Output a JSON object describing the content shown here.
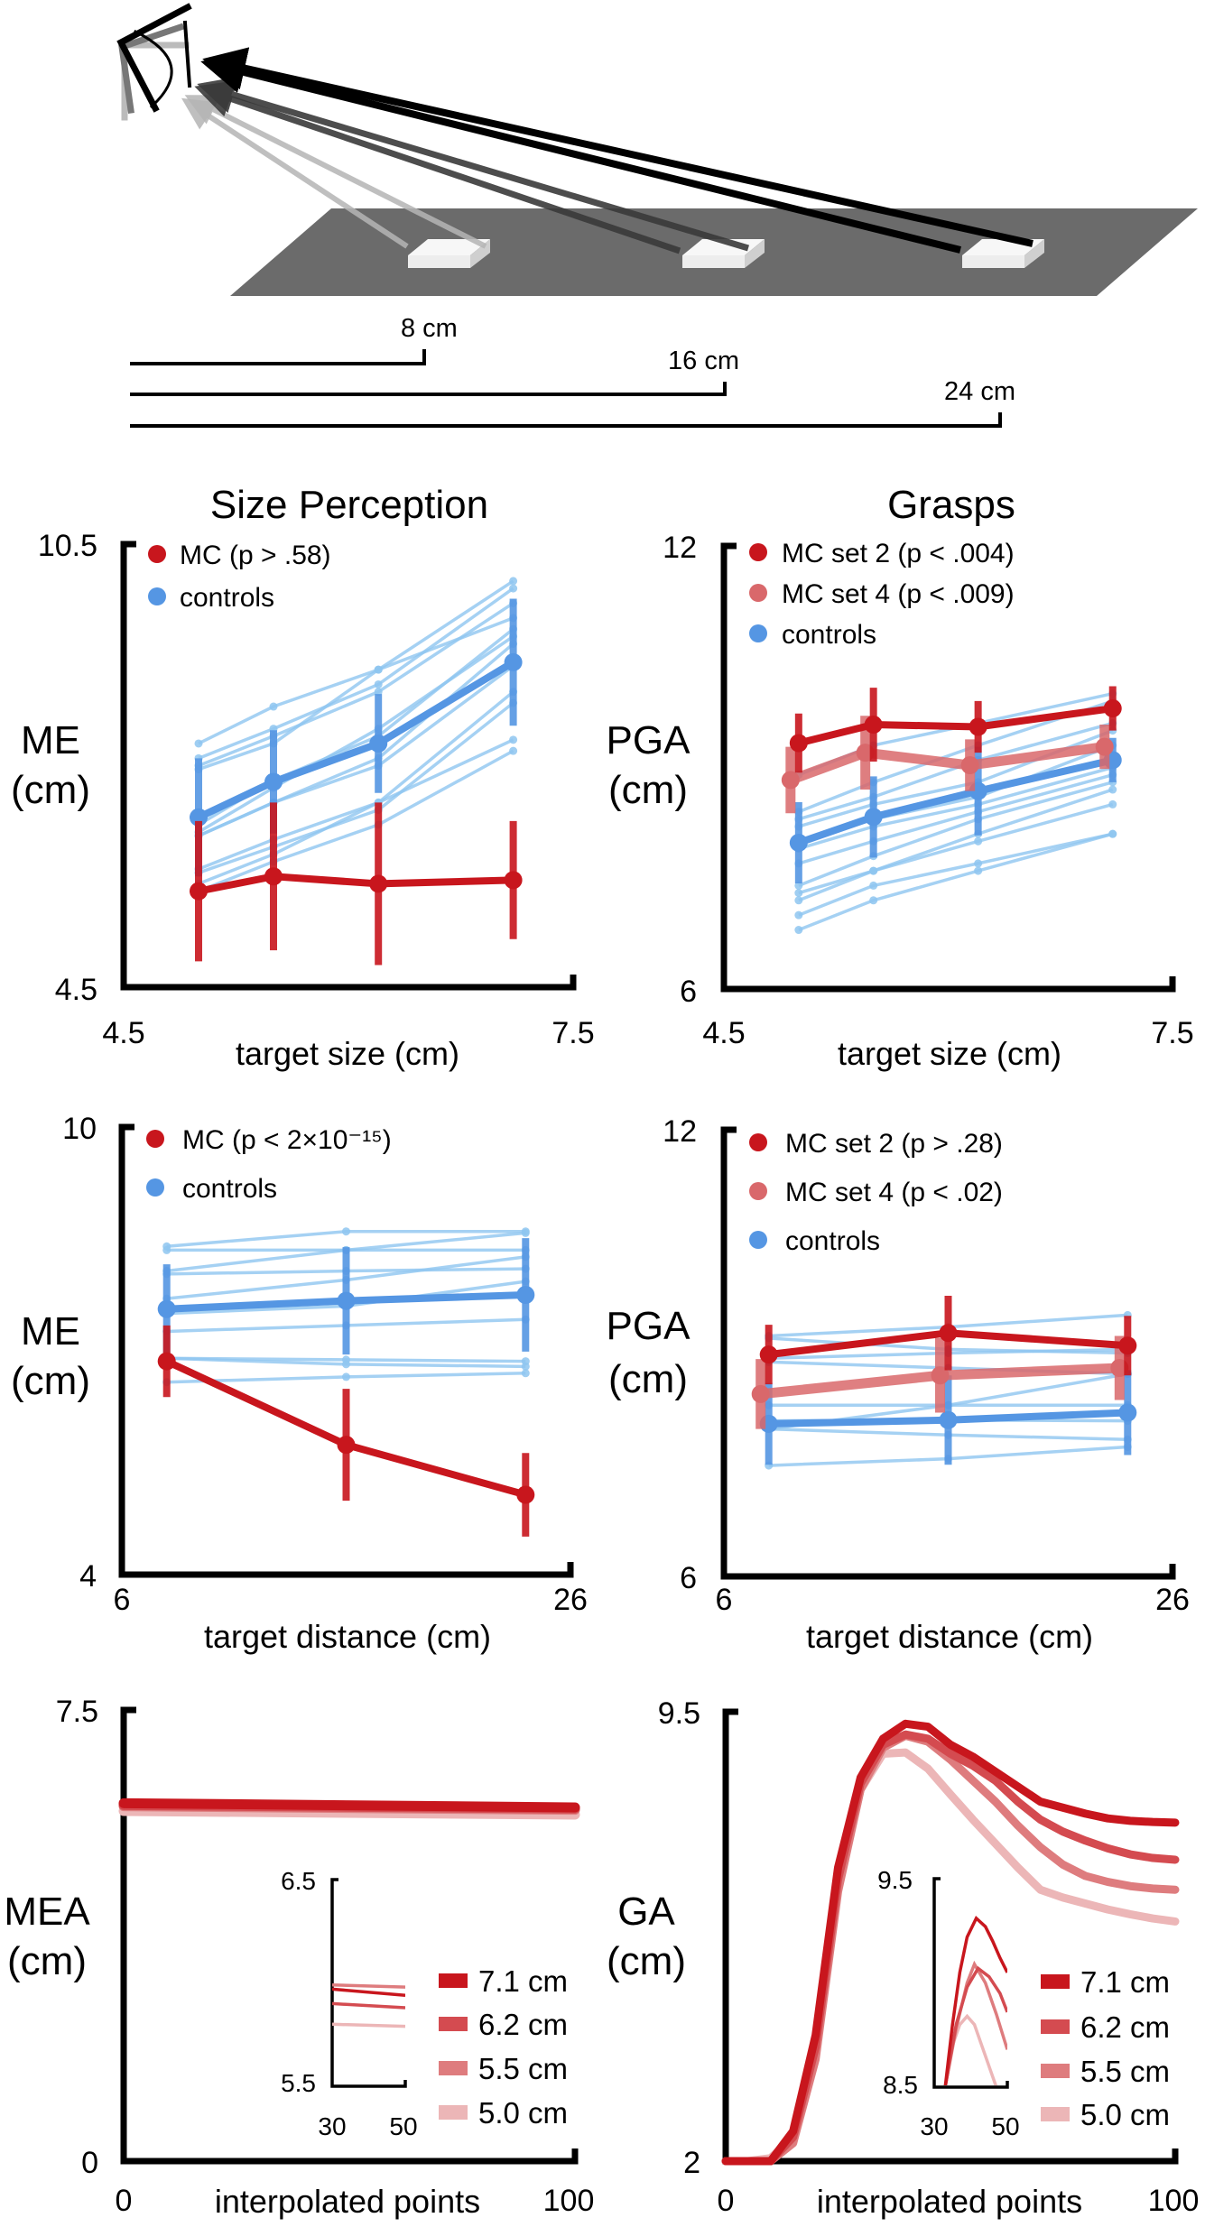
{
  "diagram": {
    "distance_labels": [
      "8 cm",
      "16 cm",
      "24 cm"
    ],
    "colors": {
      "table": "#6b6b6b",
      "block": "#f2f2f2",
      "arrow_far": "#000000",
      "arrow_mid": "#3a3a3a",
      "arrow_near": "#b5b5b5"
    }
  },
  "chart_data": [
    {
      "type": "line",
      "title": "Size Perception",
      "xlabel": "target size (cm)",
      "ylabel": [
        "ME",
        "(cm)"
      ],
      "xlim": [
        4.5,
        7.5
      ],
      "ylim": [
        4.5,
        10.5
      ],
      "xticks": [
        "4.5",
        "7.5"
      ],
      "yticks": [
        "10.5",
        "4.5"
      ],
      "x": [
        5.0,
        5.5,
        6.2,
        7.1
      ],
      "legend": "top-left",
      "series": [
        {
          "name": "MC (p > .58)",
          "color": "#c8161d",
          "mean": [
            5.8,
            6.0,
            5.9,
            5.95
          ],
          "error": [
            0.95,
            1.0,
            1.1,
            0.8
          ]
        },
        {
          "name": "controls",
          "color": "#5596e3",
          "individual_color": "#8ec5f0",
          "mean": [
            6.8,
            7.28,
            7.8,
            8.9
          ],
          "error": [
            0.8,
            0.7,
            0.67,
            0.86
          ],
          "individuals": [
            [
              7.8,
              8.3,
              8.8,
              10.0
            ],
            [
              7.6,
              8.0,
              8.6,
              9.9
            ],
            [
              7.5,
              7.9,
              8.5,
              9.7
            ],
            [
              7.45,
              7.8,
              8.8,
              9.5
            ],
            [
              6.7,
              7.3,
              7.9,
              9.35
            ],
            [
              6.6,
              7.2,
              8.0,
              9.25
            ],
            [
              6.55,
              7.0,
              7.6,
              9.15
            ],
            [
              6.55,
              7.0,
              7.5,
              8.85
            ],
            [
              6.1,
              6.5,
              7.0,
              8.5
            ],
            [
              6.05,
              6.4,
              6.9,
              8.35
            ],
            [
              5.9,
              6.3,
              7.0,
              7.85
            ],
            [
              5.8,
              6.2,
              6.7,
              7.7
            ]
          ]
        }
      ]
    },
    {
      "type": "line",
      "title": "Grasps",
      "xlabel": "target size (cm)",
      "ylabel": [
        "PGA",
        "(cm)"
      ],
      "xlim": [
        4.5,
        7.5
      ],
      "ylim": [
        6,
        12
      ],
      "xticks": [
        "4.5",
        "7.5"
      ],
      "yticks": [
        "12",
        "6"
      ],
      "x": [
        5.0,
        5.5,
        6.2,
        7.1
      ],
      "legend": "top-left",
      "series": [
        {
          "name": "MC set 2 (p < .004)",
          "color": "#c8161d",
          "mean": [
            9.33,
            9.58,
            9.55,
            9.8
          ],
          "error": [
            0.4,
            0.5,
            0.35,
            0.3
          ]
        },
        {
          "name": "MC set 4 (p < .009)",
          "color": "#d9686b",
          "mean": [
            8.83,
            9.2,
            9.03,
            9.28
          ],
          "error": [
            0.45,
            0.5,
            0.35,
            0.3
          ]
        },
        {
          "name": "controls",
          "color": "#5596e3",
          "individual_color": "#8ec5f0",
          "mean": [
            7.98,
            8.33,
            8.68,
            9.1
          ],
          "error": [
            0.55,
            0.55,
            0.6,
            0.3
          ],
          "individuals": [
            [
              8.9,
              9.3,
              9.6,
              10.0
            ],
            [
              8.4,
              8.8,
              9.3,
              9.9
            ],
            [
              8.3,
              8.6,
              9.1,
              9.6
            ],
            [
              8.2,
              8.5,
              8.8,
              9.5
            ],
            [
              8.0,
              8.3,
              8.6,
              9.3
            ],
            [
              7.9,
              8.2,
              8.5,
              9.0
            ],
            [
              7.7,
              8.0,
              8.4,
              8.9
            ],
            [
              7.4,
              7.8,
              8.3,
              8.8
            ],
            [
              7.3,
              7.6,
              8.1,
              8.7
            ],
            [
              7.2,
              7.6,
              8.0,
              8.5
            ],
            [
              7.0,
              7.4,
              7.7,
              8.1
            ],
            [
              6.8,
              7.2,
              7.6,
              8.1
            ]
          ]
        }
      ]
    },
    {
      "type": "line",
      "xlabel": "target distance (cm)",
      "ylabel": [
        "ME",
        "(cm)"
      ],
      "xlim": [
        6,
        26
      ],
      "ylim": [
        4,
        10
      ],
      "xticks": [
        "6",
        "26"
      ],
      "yticks": [
        "10",
        "4"
      ],
      "x": [
        8,
        16,
        24
      ],
      "legend": "top-left",
      "series": [
        {
          "name": "MC (p < 2×10⁻¹⁵)",
          "color": "#c8161d",
          "mean": [
            6.86,
            5.74,
            5.07
          ],
          "error": [
            0.48,
            0.75,
            0.56
          ]
        },
        {
          "name": "controls",
          "color": "#5596e3",
          "individual_color": "#8ec5f0",
          "mean": [
            7.56,
            7.67,
            7.75
          ],
          "error": [
            0.6,
            0.72,
            0.76
          ],
          "individuals": [
            [
              8.4,
              8.6,
              8.6
            ],
            [
              8.35,
              8.35,
              8.35
            ],
            [
              8.07,
              8.35,
              8.58
            ],
            [
              8.03,
              8.07,
              8.1
            ],
            [
              7.7,
              7.95,
              8.26
            ],
            [
              7.5,
              7.6,
              7.93
            ],
            [
              7.26,
              7.34,
              7.42
            ],
            [
              6.9,
              6.88,
              6.86
            ],
            [
              6.9,
              6.82,
              6.79
            ],
            [
              6.58,
              6.65,
              6.7
            ]
          ]
        }
      ]
    },
    {
      "type": "line",
      "xlabel": "target distance (cm)",
      "ylabel": [
        "PGA",
        "(cm)"
      ],
      "xlim": [
        6,
        26
      ],
      "ylim": [
        6,
        12
      ],
      "xticks": [
        "6",
        "26"
      ],
      "yticks": [
        "12",
        "6"
      ],
      "x": [
        8,
        16,
        24
      ],
      "legend": "top-left",
      "series": [
        {
          "name": "MC set 2 (p > .28)",
          "color": "#c8161d",
          "mean": [
            8.98,
            9.27,
            9.1
          ],
          "error": [
            0.4,
            0.5,
            0.4
          ]
        },
        {
          "name": "MC set 4 (p < .02)",
          "color": "#d9686b",
          "mean": [
            8.45,
            8.7,
            8.8
          ],
          "error": [
            0.47,
            0.5,
            0.43
          ]
        },
        {
          "name": "controls",
          "color": "#5596e3",
          "individual_color": "#8ec5f0",
          "mean": [
            8.05,
            8.1,
            8.2
          ],
          "error": [
            0.55,
            0.6,
            0.57
          ],
          "individuals": [
            [
              9.23,
              9.35,
              9.51
            ],
            [
              9.2,
              9.05,
              9.0
            ],
            [
              8.93,
              9.0,
              9.05
            ],
            [
              8.88,
              8.8,
              8.72
            ],
            [
              8.3,
              8.3,
              8.3
            ],
            [
              7.98,
              8.3,
              8.72
            ],
            [
              8.09,
              8.1,
              8.09
            ],
            [
              7.98,
              7.9,
              7.84
            ],
            [
              7.49,
              7.58,
              7.74
            ]
          ]
        }
      ]
    },
    {
      "type": "line",
      "xlabel": "interpolated points",
      "ylabel": [
        "MEA",
        "(cm)"
      ],
      "xlim": [
        0,
        100
      ],
      "ylim": [
        0,
        7.5
      ],
      "xticks": [
        "0",
        "100"
      ],
      "yticks": [
        "7.5",
        "0"
      ],
      "legend": "bottom-right",
      "series": [
        {
          "name": "7.1 cm",
          "color": "#c8161d",
          "x": [
            0,
            100
          ],
          "y": [
            5.95,
            5.88
          ]
        },
        {
          "name": "6.2 cm",
          "color": "#d44b50",
          "x": [
            0,
            100
          ],
          "y": [
            5.92,
            5.86
          ]
        },
        {
          "name": "5.5 cm",
          "color": "#de7c7e",
          "x": [
            0,
            100
          ],
          "y": [
            5.9,
            5.84
          ]
        },
        {
          "name": "5.0 cm",
          "color": "#ecb6b7",
          "x": [
            0,
            100
          ],
          "y": [
            5.82,
            5.76
          ]
        }
      ],
      "inset": {
        "xlim": [
          30,
          50
        ],
        "ylim": [
          5.5,
          6.5
        ],
        "xticks": [
          "30",
          "50"
        ],
        "yticks": [
          "6.5",
          "5.5"
        ],
        "series": [
          {
            "name": "7.1 cm",
            "x": [
              30,
              50
            ],
            "y": [
              5.97,
              5.94
            ]
          },
          {
            "name": "6.2 cm",
            "x": [
              30,
              50
            ],
            "y": [
              5.9,
              5.88
            ]
          },
          {
            "name": "5.5 cm",
            "x": [
              30,
              50
            ],
            "y": [
              5.99,
              5.98
            ]
          },
          {
            "name": "5.0 cm",
            "x": [
              30,
              50
            ],
            "y": [
              5.8,
              5.79
            ]
          }
        ]
      }
    },
    {
      "type": "line",
      "xlabel": "interpolated points",
      "ylabel": [
        "GA",
        "(cm)"
      ],
      "xlim": [
        0,
        100
      ],
      "ylim": [
        2,
        9.5
      ],
      "xticks": [
        "0",
        "100"
      ],
      "yticks": [
        "9.5",
        "2"
      ],
      "legend": "bottom-right",
      "series": [
        {
          "name": "7.1 cm",
          "color": "#c8161d",
          "x": [
            0,
            5,
            10,
            15,
            20,
            25,
            30,
            35,
            40,
            45,
            50,
            55,
            60,
            65,
            70,
            75,
            80,
            85,
            90,
            95,
            100
          ],
          "y": [
            2.0,
            2.0,
            2.0,
            2.5,
            4.1,
            6.9,
            8.4,
            9.05,
            9.3,
            9.25,
            8.95,
            8.75,
            8.5,
            8.25,
            8.0,
            7.9,
            7.8,
            7.72,
            7.68,
            7.66,
            7.65
          ]
        },
        {
          "name": "6.2 cm",
          "color": "#d44b50",
          "x": [
            0,
            5,
            10,
            15,
            20,
            25,
            30,
            35,
            40,
            45,
            50,
            55,
            60,
            65,
            70,
            75,
            80,
            85,
            90,
            95,
            100
          ],
          "y": [
            2.0,
            2.0,
            2.0,
            2.4,
            3.9,
            6.7,
            8.3,
            8.95,
            9.12,
            9.05,
            8.8,
            8.6,
            8.35,
            8.0,
            7.7,
            7.5,
            7.35,
            7.22,
            7.12,
            7.06,
            7.03
          ]
        },
        {
          "name": "5.5 cm",
          "color": "#de7c7e",
          "x": [
            0,
            5,
            10,
            15,
            20,
            25,
            30,
            35,
            40,
            45,
            50,
            55,
            60,
            65,
            70,
            75,
            80,
            85,
            90,
            95,
            100
          ],
          "y": [
            2.0,
            2.0,
            2.0,
            2.3,
            3.7,
            6.5,
            8.2,
            8.9,
            9.1,
            9.0,
            8.7,
            8.35,
            8.0,
            7.6,
            7.24,
            6.95,
            6.76,
            6.66,
            6.59,
            6.55,
            6.53
          ]
        },
        {
          "name": "5.0 cm",
          "color": "#ecb6b7",
          "x": [
            0,
            5,
            10,
            15,
            20,
            25,
            30,
            35,
            40,
            45,
            50,
            55,
            60,
            65,
            70,
            75,
            80,
            85,
            90,
            95,
            100
          ],
          "y": [
            2.0,
            2.0,
            2.05,
            2.4,
            3.8,
            6.6,
            8.2,
            8.8,
            8.82,
            8.55,
            8.12,
            7.7,
            7.3,
            6.9,
            6.53,
            6.4,
            6.3,
            6.2,
            6.12,
            6.05,
            6.0
          ]
        }
      ],
      "inset": {
        "xlim": [
          30,
          50
        ],
        "ylim": [
          8.5,
          9.5
        ],
        "xticks": [
          "30",
          "50"
        ],
        "yticks": [
          "9.5",
          "8.5"
        ],
        "series": [
          {
            "name": "7.1 cm",
            "x": [
              33,
              35,
              37,
              39,
              41.5,
              44,
              46,
              48,
              50
            ],
            "y": [
              8.5,
              8.8,
              9.05,
              9.22,
              9.31,
              9.27,
              9.2,
              9.12,
              9.05
            ]
          },
          {
            "name": "6.2 cm",
            "x": [
              33,
              36,
              39,
              42,
              45,
              48,
              50
            ],
            "y": [
              8.5,
              8.8,
              8.98,
              9.07,
              9.03,
              8.95,
              8.86
            ]
          },
          {
            "name": "5.5 cm",
            "x": [
              33,
              36,
              39,
              41,
              44,
              47,
              50
            ],
            "y": [
              8.5,
              8.78,
              9.0,
              9.09,
              9.0,
              8.85,
              8.68
            ]
          },
          {
            "name": "5.0 cm",
            "x": [
              33,
              35,
              37,
              39,
              41,
              43,
              45,
              47
            ],
            "y": [
              8.5,
              8.7,
              8.8,
              8.84,
              8.8,
              8.7,
              8.6,
              8.5
            ]
          }
        ]
      }
    }
  ]
}
